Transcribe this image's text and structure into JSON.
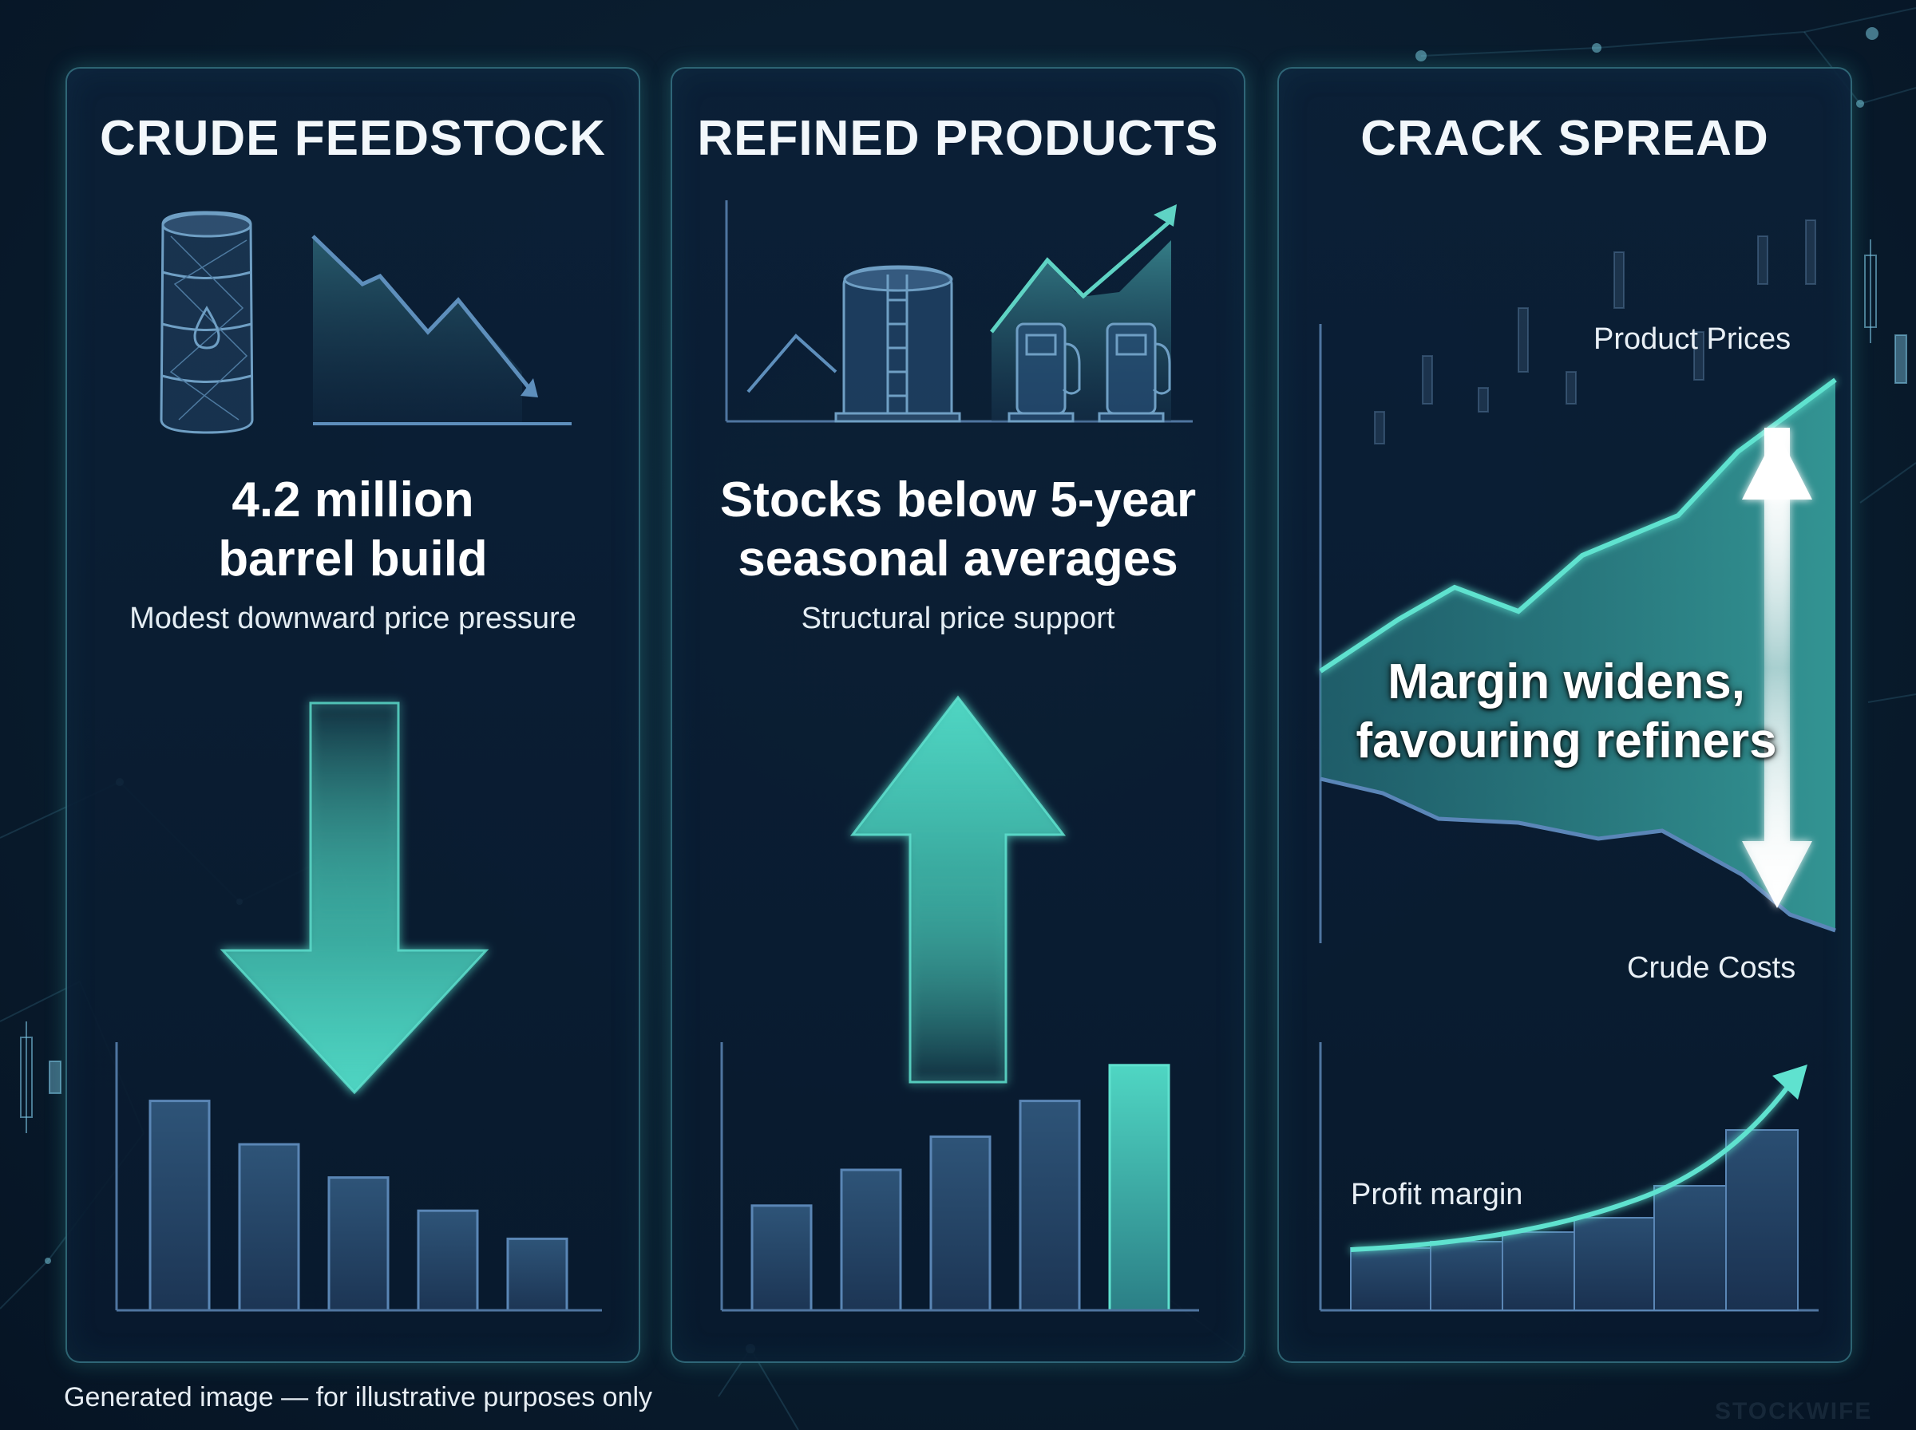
{
  "panels": {
    "crude": {
      "title": "CRUDE FEEDSTOCK",
      "headline_1": "4.2 million",
      "headline_2": "barrel build",
      "subtitle": "Modest downward price pressure",
      "trend": "down",
      "bars": [
        0.82,
        0.65,
        0.52,
        0.39,
        0.28
      ]
    },
    "refined": {
      "title": "REFINED PRODUCTS",
      "headline_1": "Stocks below 5-year",
      "headline_2": "seasonal averages",
      "subtitle": "Structural price support",
      "trend": "up",
      "bars": [
        0.41,
        0.55,
        0.68,
        0.82,
        0.96
      ]
    },
    "crack": {
      "title": "CRACK SPREAD",
      "product_label": "Product Prices",
      "crude_label": "Crude Costs",
      "margin_line_1": "Margin widens,",
      "margin_line_2": "favouring refiners",
      "profit_label": "Profit margin"
    }
  },
  "footnote": "Generated image — for illustrative purposes only",
  "watermark": "STOCKWIFE",
  "colors": {
    "accent": "#4fd6c3",
    "panel_border": "#5abec8",
    "background": "#0a1e30",
    "bar_fill": "#2a4a6a",
    "bar_stroke": "#5a86b5"
  },
  "icons": [
    "oil-barrel-icon",
    "storage-tank-icon",
    "fuel-pump-icon",
    "down-arrow-icon",
    "up-arrow-icon",
    "double-arrow-icon"
  ]
}
